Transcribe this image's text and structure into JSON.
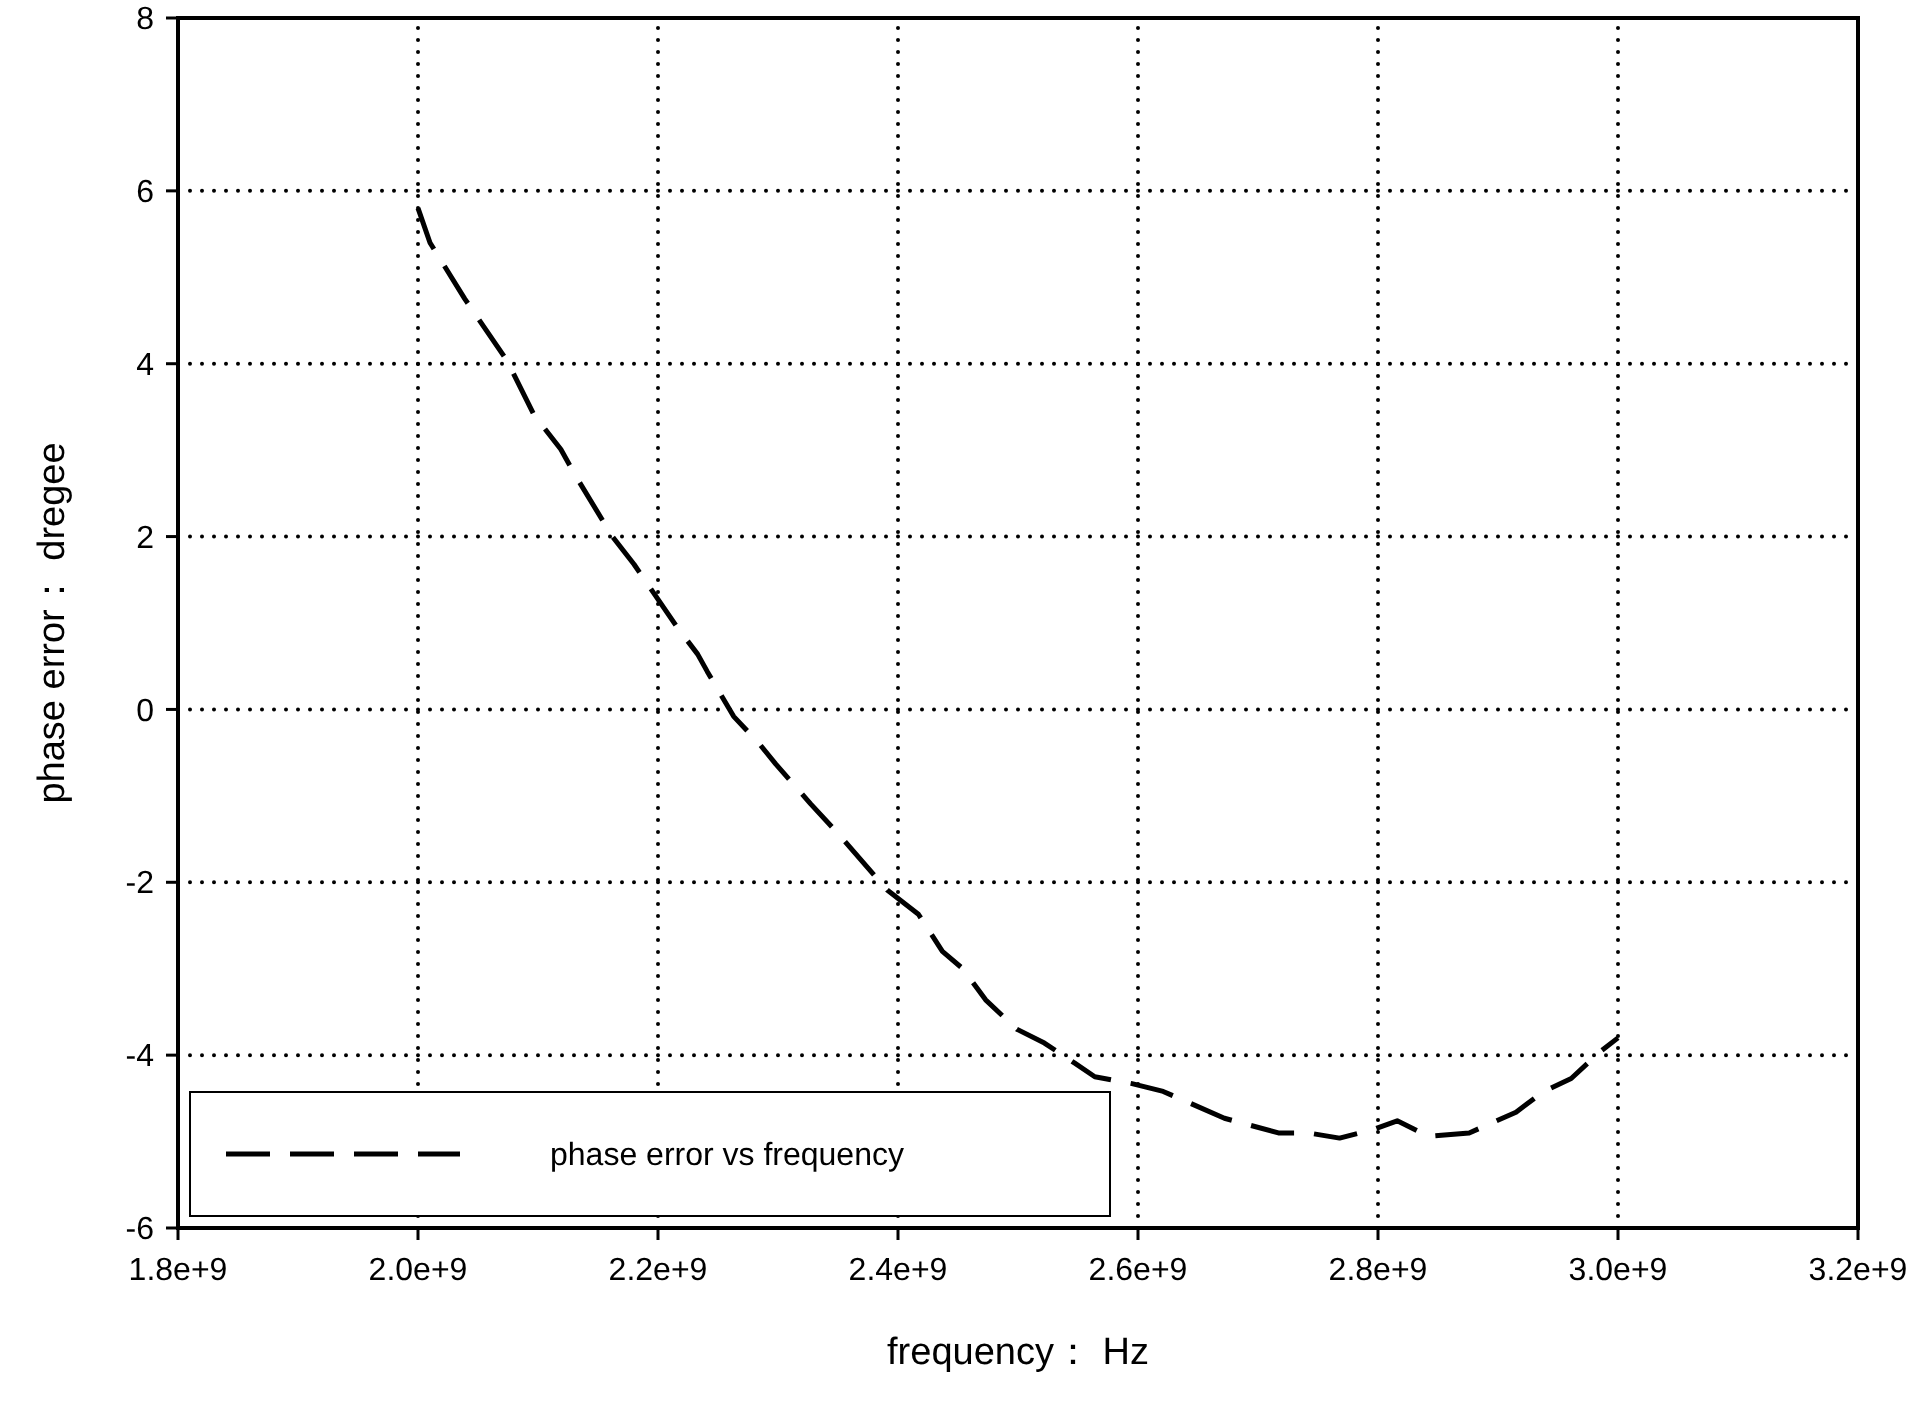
{
  "chart_data": {
    "type": "line",
    "xlabel": "frequency： Hz",
    "ylabel": "phase error： dregee",
    "xlim": [
      1800000000,
      3200000000
    ],
    "xticks": [
      {
        "value": 1800000000,
        "label": "1.8e+9"
      },
      {
        "value": 2000000000,
        "label": "2.0e+9"
      },
      {
        "value": 2200000000,
        "label": "2.2e+9"
      },
      {
        "value": 2400000000,
        "label": "2.4e+9"
      },
      {
        "value": 2600000000,
        "label": "2.6e+9"
      },
      {
        "value": 2800000000,
        "label": "2.8e+9"
      },
      {
        "value": 3000000000,
        "label": "3.0e+9"
      },
      {
        "value": 3200000000,
        "label": "3.2e+9"
      }
    ],
    "ylim": [
      -6,
      8
    ],
    "yticks": [
      -6,
      -4,
      -2,
      0,
      2,
      4,
      6,
      8
    ],
    "grid": true,
    "legend": "bottom left",
    "line_style": "dashed",
    "series": [
      {
        "name": "phase error vs frequency",
        "color": "#000000",
        "x": [
          2000000000,
          2010000000,
          2039000000,
          2074000000,
          2097000000,
          2119000000,
          2131000000,
          2162000000,
          2180000000,
          2216000000,
          2233000000,
          2241000000,
          2263000000,
          2284000000,
          2298000000,
          2327000000,
          2349000000,
          2391000000,
          2417000000,
          2437000000,
          2454000000,
          2473000000,
          2499000000,
          2522000000,
          2547000000,
          2564000000,
          2595000000,
          2621000000,
          2672000000,
          2717000000,
          2742000000,
          2768000000,
          2796000000,
          2816000000,
          2842000000,
          2876000000,
          2915000000,
          2938000000,
          2961000000,
          2986000000,
          3000000000
        ],
        "values": [
          5.8,
          5.4,
          4.75,
          4.04,
          3.4,
          3.01,
          2.71,
          2.0,
          1.68,
          0.95,
          0.64,
          0.44,
          -0.08,
          -0.39,
          -0.63,
          -1.09,
          -1.42,
          -2.09,
          -2.37,
          -2.8,
          -3.0,
          -3.36,
          -3.7,
          -3.86,
          -4.09,
          -4.25,
          -4.33,
          -4.42,
          -4.73,
          -4.9,
          -4.9,
          -4.96,
          -4.86,
          -4.76,
          -4.94,
          -4.9,
          -4.66,
          -4.42,
          -4.27,
          -3.95,
          -3.8
        ]
      }
    ]
  }
}
